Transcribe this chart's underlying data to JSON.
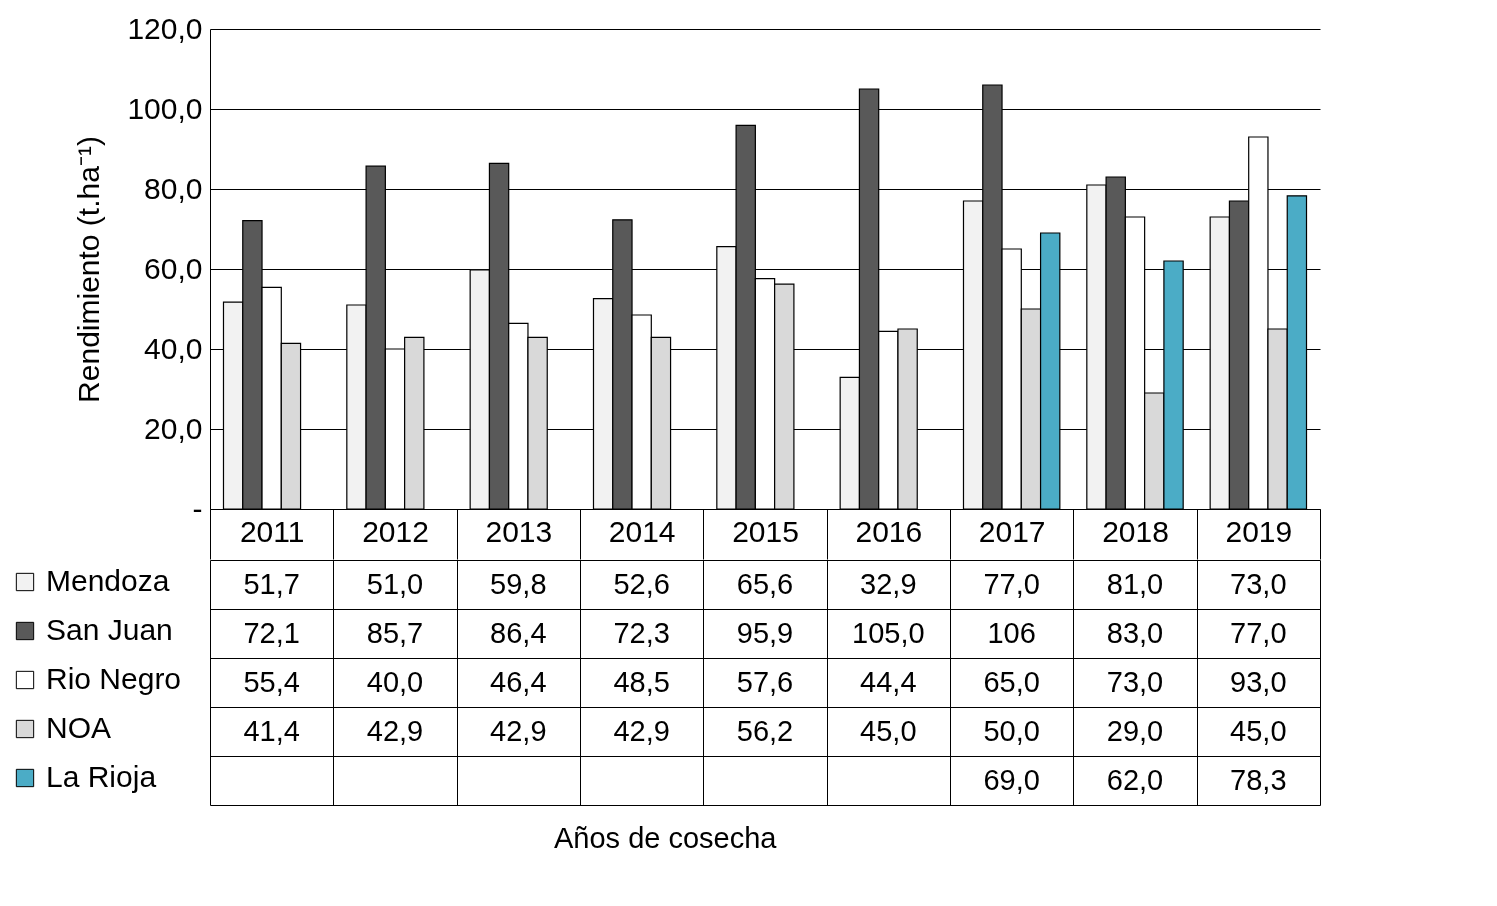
{
  "chart_data": {
    "type": "bar",
    "annotations": [
      "Años de cosecha"
    ],
    "ylabel": "Rendimiento (t.ha⁻¹)",
    "categories": [
      "2011",
      "2012",
      "2013",
      "2014",
      "2015",
      "2016",
      "2017",
      "2018",
      "2019"
    ],
    "series": [
      {
        "name": "Mendoza",
        "color": "#f2f2f2",
        "values": [
          51.7,
          51.0,
          59.8,
          52.6,
          65.6,
          32.9,
          77.0,
          81.0,
          73.0
        ],
        "value_labels": [
          "51,7",
          "51,0",
          "59,8",
          "52,6",
          "65,6",
          "32,9",
          "77,0",
          "81,0",
          "73,0"
        ]
      },
      {
        "name": "San Juan",
        "color": "#595959",
        "values": [
          72.1,
          85.7,
          86.4,
          72.3,
          95.9,
          105.0,
          106,
          83.0,
          77.0
        ],
        "value_labels": [
          "72,1",
          "85,7",
          "86,4",
          "72,3",
          "95,9",
          "105,0",
          "106",
          "83,0",
          "77,0"
        ]
      },
      {
        "name": "Rio Negro",
        "color": "#ffffff",
        "values": [
          55.4,
          40.0,
          46.4,
          48.5,
          57.6,
          44.4,
          65.0,
          73.0,
          93.0
        ],
        "value_labels": [
          "55,4",
          "40,0",
          "46,4",
          "48,5",
          "57,6",
          "44,4",
          "65,0",
          "73,0",
          "93,0"
        ]
      },
      {
        "name": "NOA",
        "color": "#d9d9d9",
        "values": [
          41.4,
          42.9,
          42.9,
          42.9,
          56.2,
          45.0,
          50.0,
          29.0,
          45.0
        ],
        "value_labels": [
          "41,4",
          "42,9",
          "42,9",
          "42,9",
          "56,2",
          "45,0",
          "50,0",
          "29,0",
          "45,0"
        ]
      },
      {
        "name": "La Rioja",
        "color": "#4bacc6",
        "values": [
          null,
          null,
          null,
          null,
          null,
          null,
          69.0,
          62.0,
          78.3
        ],
        "value_labels": [
          null,
          null,
          null,
          null,
          null,
          null,
          "69,0",
          "62,0",
          "78,3"
        ]
      }
    ],
    "ylim": [
      0,
      120
    ],
    "yticks": [
      {
        "value": 0,
        "label": "-"
      },
      {
        "value": 20,
        "label": "20,0"
      },
      {
        "value": 40,
        "label": "40,0"
      },
      {
        "value": 60,
        "label": "60,0"
      },
      {
        "value": 80,
        "label": "80,0"
      },
      {
        "value": 100,
        "label": "100,0"
      },
      {
        "value": 120,
        "label": "120,0"
      }
    ],
    "grid": "y",
    "legend": "bottom left"
  }
}
